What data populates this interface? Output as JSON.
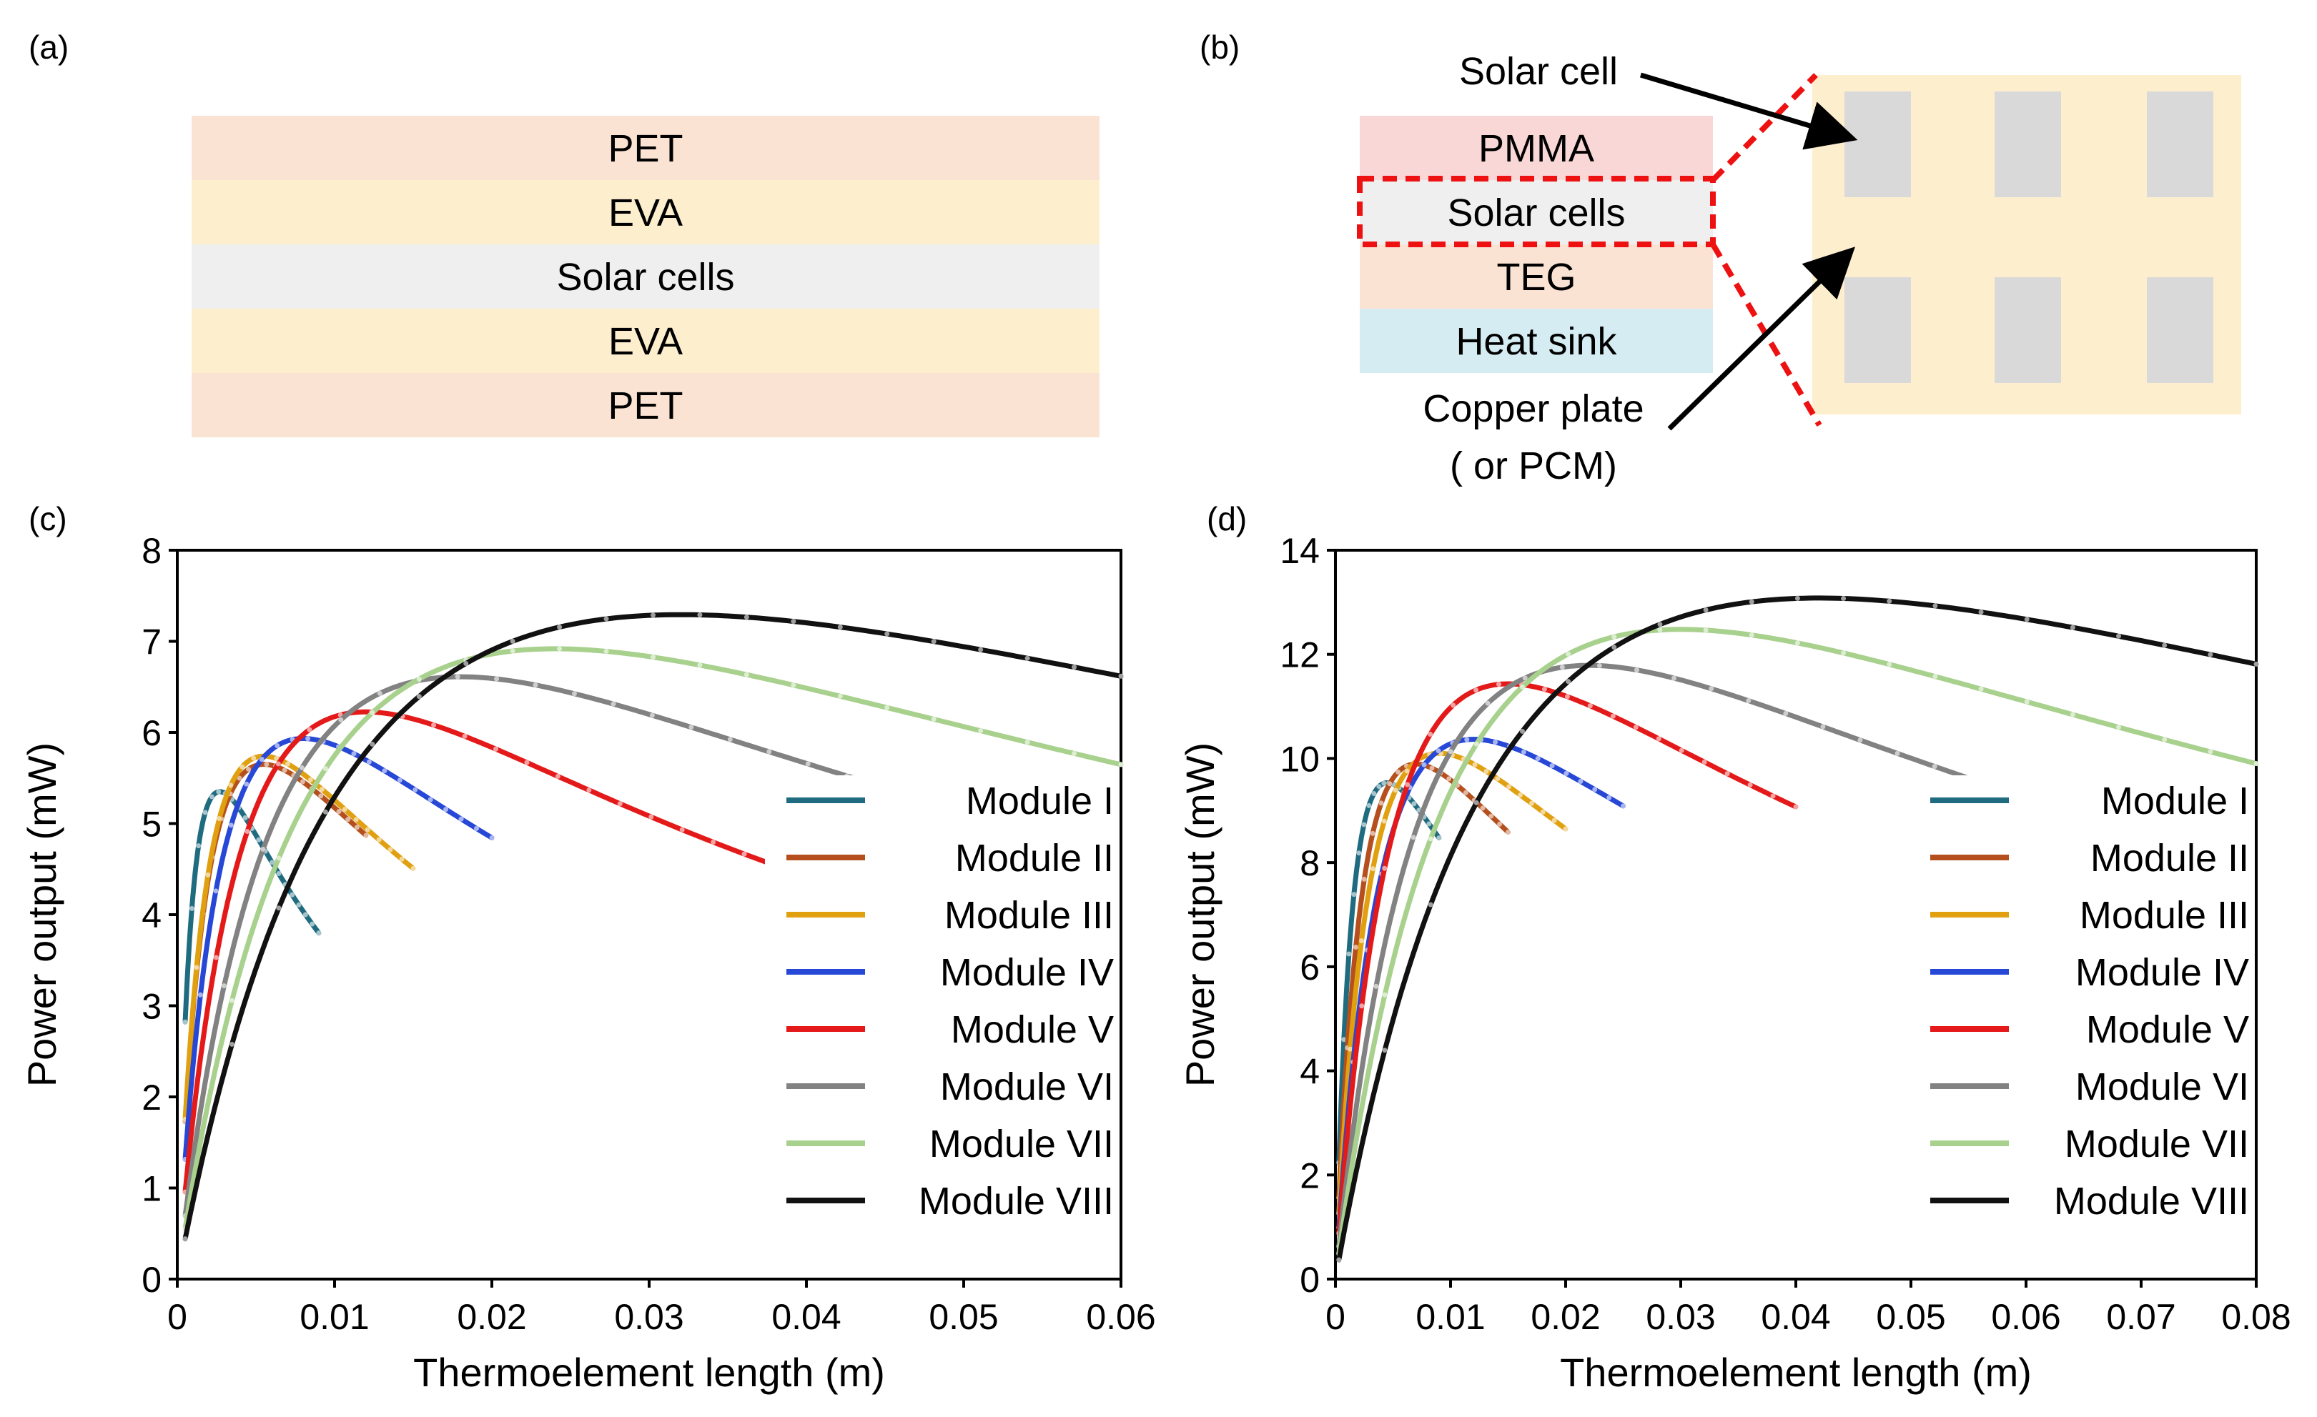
{
  "panels": {
    "a": {
      "label": "(a)",
      "layers": [
        {
          "name": "PET",
          "color": "#fbe3d4"
        },
        {
          "name": "EVA",
          "color": "#fdefcd"
        },
        {
          "name": "Solar cells",
          "color": "#efefef"
        },
        {
          "name": "EVA",
          "color": "#fdefcd"
        },
        {
          "name": "PET",
          "color": "#fbe3d4"
        }
      ]
    },
    "b": {
      "label": "(b)",
      "layers": [
        {
          "name": "PMMA",
          "color": "#f8d7d6"
        },
        {
          "name": "Solar cells",
          "color": "#efefef"
        },
        {
          "name": "TEG",
          "color": "#fbe3d4"
        },
        {
          "name": "Heat sink",
          "color": "#d4ecf2"
        }
      ],
      "callout_solar": "Solar cell",
      "callout_copper_line1": "Copper plate",
      "callout_copper_line2": "( or PCM)",
      "plate_color": "#fdefcd",
      "cell_color": "#d9d9d9",
      "dashed_color": "#ee1111"
    },
    "c": {
      "label": "(c)"
    },
    "d": {
      "label": "(d)"
    }
  },
  "series_styles": [
    {
      "name": "Module I",
      "color": "#1f6b80"
    },
    {
      "name": "Module II",
      "color": "#b5501e"
    },
    {
      "name": "Module III",
      "color": "#e0a010"
    },
    {
      "name": "Module IV",
      "color": "#2747d6"
    },
    {
      "name": "Module V",
      "color": "#e41a1a"
    },
    {
      "name": "Module VI",
      "color": "#828282"
    },
    {
      "name": "Module VII",
      "color": "#a9d18e"
    },
    {
      "name": "Module VIII",
      "color": "#111111"
    }
  ],
  "chart_data": [
    {
      "type": "line",
      "panel": "c",
      "xlabel": "Thermoelement length (m)",
      "ylabel": "Power output (mW)",
      "xlim": [
        0,
        0.06
      ],
      "ylim": [
        0,
        8
      ],
      "xticks": [
        "0",
        "0.01",
        "0.02",
        "0.03",
        "0.04",
        "0.05",
        "0.06"
      ],
      "yticks": [
        "0",
        "1",
        "2",
        "3",
        "4",
        "5",
        "6",
        "7",
        "8"
      ],
      "legend_position": "lower-right",
      "series": [
        {
          "name": "Module I",
          "Lopt": 0.0027,
          "Pmax": 5.35,
          "L0": 0.0027,
          "xmin": 0.0005,
          "xmax": 0.009
        },
        {
          "name": "Module II",
          "Lopt": 0.0055,
          "Pmax": 5.65,
          "L0": 0.0055,
          "xmin": 0.0005,
          "xmax": 0.012
        },
        {
          "name": "Module III",
          "Lopt": 0.0065,
          "Pmax": 5.7,
          "L0": 0.0055,
          "xmin": 0.0005,
          "xmax": 0.015
        },
        {
          "name": "Module IV",
          "Lopt": 0.01,
          "Pmax": 5.86,
          "L0": 0.008,
          "xmin": 0.0005,
          "xmax": 0.02
        },
        {
          "name": "Module V",
          "Lopt": 0.0165,
          "Pmax": 6.07,
          "L0": 0.012,
          "xmin": 0.0005,
          "xmax": 0.04
        },
        {
          "name": "Module VI",
          "Lopt": 0.0265,
          "Pmax": 6.37,
          "L0": 0.018,
          "xmin": 0.0005,
          "xmax": 0.05
        },
        {
          "name": "Module VII",
          "Lopt": 0.0355,
          "Pmax": 6.66,
          "L0": 0.024,
          "xmin": 0.0005,
          "xmax": 0.06
        },
        {
          "name": "Module VIII",
          "Lopt": 0.047,
          "Pmax": 7.03,
          "L0": 0.032,
          "xmin": 0.0005,
          "xmax": 0.06
        }
      ]
    },
    {
      "type": "line",
      "panel": "d",
      "xlabel": "Thermoelement length (m)",
      "ylabel": "Power output (mW)",
      "xlim": [
        0,
        0.08
      ],
      "ylim": [
        0,
        14
      ],
      "xticks": [
        "0",
        "0.01",
        "0.02",
        "0.03",
        "0.04",
        "0.05",
        "0.06",
        "0.07",
        "0.08"
      ],
      "yticks": [
        "0",
        "2",
        "4",
        "6",
        "8",
        "10",
        "12",
        "14"
      ],
      "legend_position": "lower-right",
      "series": [
        {
          "name": "Module I",
          "Lopt": 0.004,
          "Pmax": 9.5,
          "L0": 0.0045,
          "xmin": 0.0003,
          "xmax": 0.009
        },
        {
          "name": "Module II",
          "Lopt": 0.008,
          "Pmax": 9.85,
          "L0": 0.007,
          "xmin": 0.0003,
          "xmax": 0.015
        },
        {
          "name": "Module III",
          "Lopt": 0.011,
          "Pmax": 10.0,
          "L0": 0.009,
          "xmin": 0.0003,
          "xmax": 0.02
        },
        {
          "name": "Module IV",
          "Lopt": 0.0155,
          "Pmax": 10.2,
          "L0": 0.012,
          "xmin": 0.0003,
          "xmax": 0.025
        },
        {
          "name": "Module V",
          "Lopt": 0.027,
          "Pmax": 10.5,
          "L0": 0.015,
          "xmin": 0.0003,
          "xmax": 0.04
        },
        {
          "name": "Module VI",
          "Lopt": 0.038,
          "Pmax": 10.95,
          "L0": 0.022,
          "xmin": 0.0003,
          "xmax": 0.065
        },
        {
          "name": "Module VII",
          "Lopt": 0.055,
          "Pmax": 11.4,
          "L0": 0.03,
          "xmin": 0.0003,
          "xmax": 0.08
        },
        {
          "name": "Module VIII",
          "Lopt": 0.077,
          "Pmax": 11.95,
          "L0": 0.042,
          "xmin": 0.0003,
          "xmax": 0.08
        }
      ]
    }
  ]
}
